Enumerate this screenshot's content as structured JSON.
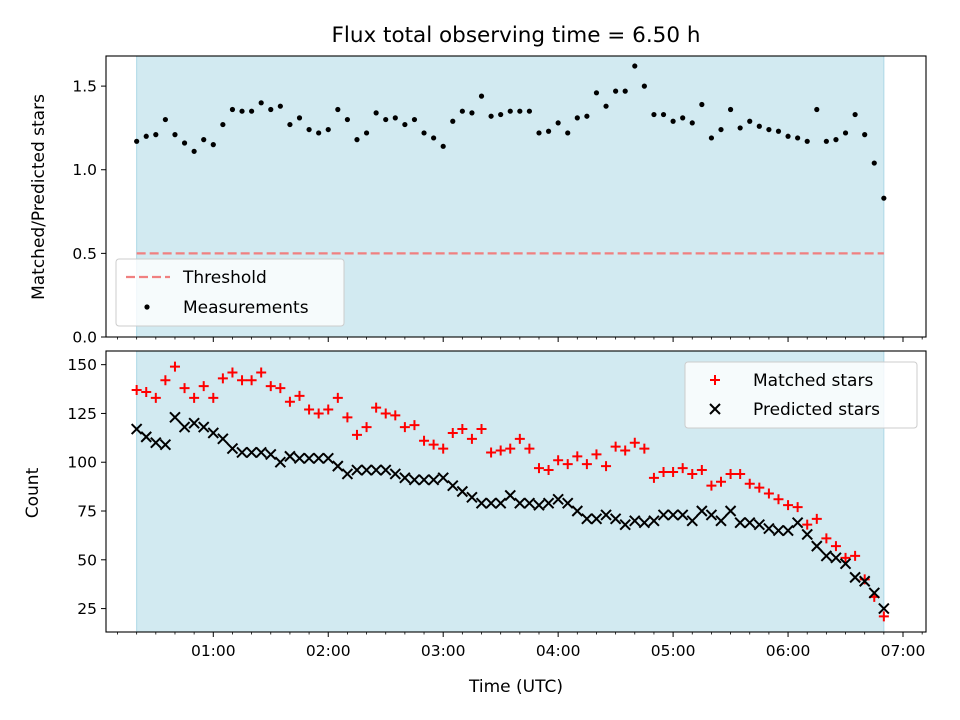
{
  "chart_data": [
    {
      "type": "scatter",
      "title": "Flux total observing time = 6.50 h",
      "ylabel": "Matched/Predicted stars",
      "xlabel": "",
      "xlim": [
        "00:04",
        "07:12"
      ],
      "ylim": [
        0,
        1.68
      ],
      "yticks": [
        {
          "v": 0.0,
          "label": "0.0"
        },
        {
          "v": 0.5,
          "label": "0.5"
        },
        {
          "v": 1.0,
          "label": "1.0"
        },
        {
          "v": 1.5,
          "label": "1.5"
        }
      ],
      "shaded_span": {
        "start": "00:20",
        "end": "06:50",
        "color": "#add8e6"
      },
      "threshold": {
        "name": "Threshold",
        "value": 0.5,
        "color": "#f08080"
      },
      "legend": {
        "position": "lower-left",
        "entries": [
          "Threshold",
          "Measurements"
        ]
      },
      "series": [
        {
          "name": "Measurements",
          "color": "#000000",
          "x": [
            "00:20",
            "00:25",
            "00:30",
            "00:35",
            "00:40",
            "00:45",
            "00:50",
            "00:55",
            "01:00",
            "01:05",
            "01:10",
            "01:15",
            "01:20",
            "01:25",
            "01:30",
            "01:35",
            "01:40",
            "01:45",
            "01:50",
            "01:55",
            "02:00",
            "02:05",
            "02:10",
            "02:15",
            "02:20",
            "02:25",
            "02:30",
            "02:35",
            "02:40",
            "02:45",
            "02:50",
            "02:55",
            "03:00",
            "03:05",
            "03:10",
            "03:15",
            "03:20",
            "03:25",
            "03:30",
            "03:35",
            "03:40",
            "03:45",
            "03:50",
            "03:55",
            "04:00",
            "04:05",
            "04:10",
            "04:15",
            "04:20",
            "04:25",
            "04:30",
            "04:35",
            "04:40",
            "04:45",
            "04:50",
            "04:55",
            "05:00",
            "05:05",
            "05:10",
            "05:15",
            "05:20",
            "05:25",
            "05:30",
            "05:35",
            "05:40",
            "05:45",
            "05:50",
            "05:55",
            "06:00",
            "06:05",
            "06:10",
            "06:15",
            "06:20",
            "06:25",
            "06:30",
            "06:35",
            "06:40",
            "06:45",
            "06:50"
          ],
          "y": [
            1.17,
            1.2,
            1.21,
            1.3,
            1.21,
            1.16,
            1.11,
            1.18,
            1.15,
            1.27,
            1.36,
            1.35,
            1.35,
            1.4,
            1.36,
            1.38,
            1.27,
            1.31,
            1.24,
            1.22,
            1.24,
            1.36,
            1.3,
            1.18,
            1.22,
            1.34,
            1.3,
            1.31,
            1.27,
            1.3,
            1.22,
            1.19,
            1.14,
            1.29,
            1.35,
            1.34,
            1.44,
            1.32,
            1.33,
            1.35,
            1.35,
            1.35,
            1.22,
            1.23,
            1.28,
            1.22,
            1.31,
            1.32,
            1.46,
            1.38,
            1.47,
            1.47,
            1.62,
            1.5,
            1.33,
            1.33,
            1.29,
            1.31,
            1.28,
            1.39,
            1.19,
            1.24,
            1.36,
            1.25,
            1.29,
            1.26,
            1.24,
            1.23,
            1.2,
            1.19,
            1.17,
            1.36,
            1.17,
            1.18,
            1.22,
            1.33,
            1.21,
            1.04,
            0.83
          ]
        }
      ]
    },
    {
      "type": "scatter",
      "title": "",
      "xlabel": "Time (UTC)",
      "ylabel": "Count",
      "xlim": [
        "00:04",
        "07:12"
      ],
      "ylim": [
        13,
        157
      ],
      "xticks": [
        "01:00",
        "02:00",
        "03:00",
        "04:00",
        "05:00",
        "06:00",
        "07:00"
      ],
      "yticks": [
        {
          "v": 25,
          "label": "25"
        },
        {
          "v": 50,
          "label": "50"
        },
        {
          "v": 75,
          "label": "75"
        },
        {
          "v": 100,
          "label": "100"
        },
        {
          "v": 125,
          "label": "125"
        },
        {
          "v": 150,
          "label": "150"
        }
      ],
      "shaded_span": {
        "start": "00:20",
        "end": "06:50",
        "color": "#add8e6"
      },
      "legend": {
        "position": "top-right",
        "entries": [
          "Matched stars",
          "Predicted stars"
        ]
      },
      "series": [
        {
          "name": "Matched stars",
          "marker": "plus",
          "color": "#ff0000",
          "x": [
            "00:20",
            "00:25",
            "00:30",
            "00:35",
            "00:40",
            "00:45",
            "00:50",
            "00:55",
            "01:00",
            "01:05",
            "01:10",
            "01:15",
            "01:20",
            "01:25",
            "01:30",
            "01:35",
            "01:40",
            "01:45",
            "01:50",
            "01:55",
            "02:00",
            "02:05",
            "02:10",
            "02:15",
            "02:20",
            "02:25",
            "02:30",
            "02:35",
            "02:40",
            "02:45",
            "02:50",
            "02:55",
            "03:00",
            "03:05",
            "03:10",
            "03:15",
            "03:20",
            "03:25",
            "03:30",
            "03:35",
            "03:40",
            "03:45",
            "03:50",
            "03:55",
            "04:00",
            "04:05",
            "04:10",
            "04:15",
            "04:20",
            "04:25",
            "04:30",
            "04:35",
            "04:40",
            "04:45",
            "04:50",
            "04:55",
            "05:00",
            "05:05",
            "05:10",
            "05:15",
            "05:20",
            "05:25",
            "05:30",
            "05:35",
            "05:40",
            "05:45",
            "05:50",
            "05:55",
            "06:00",
            "06:05",
            "06:10",
            "06:15",
            "06:20",
            "06:25",
            "06:30",
            "06:35",
            "06:40",
            "06:45",
            "06:50"
          ],
          "y": [
            137,
            136,
            133,
            142,
            149,
            138,
            133,
            139,
            133,
            143,
            146,
            142,
            142,
            146,
            139,
            138,
            131,
            134,
            127,
            125,
            127,
            133,
            123,
            114,
            118,
            128,
            125,
            124,
            118,
            119,
            111,
            109,
            107,
            115,
            117,
            112,
            117,
            105,
            106,
            107,
            112,
            107,
            97,
            96,
            101,
            99,
            103,
            99,
            104,
            98,
            108,
            106,
            110,
            107,
            92,
            95,
            95,
            97,
            94,
            96,
            88,
            90,
            94,
            94,
            89,
            87,
            84,
            81,
            78,
            77,
            68,
            71,
            61,
            57,
            51,
            52,
            40,
            31,
            21
          ]
        },
        {
          "name": "Predicted stars",
          "marker": "x",
          "color": "#000000",
          "x": [
            "00:20",
            "00:25",
            "00:30",
            "00:35",
            "00:40",
            "00:45",
            "00:50",
            "00:55",
            "01:00",
            "01:05",
            "01:10",
            "01:15",
            "01:20",
            "01:25",
            "01:30",
            "01:35",
            "01:40",
            "01:45",
            "01:50",
            "01:55",
            "02:00",
            "02:05",
            "02:10",
            "02:15",
            "02:20",
            "02:25",
            "02:30",
            "02:35",
            "02:40",
            "02:45",
            "02:50",
            "02:55",
            "03:00",
            "03:05",
            "03:10",
            "03:15",
            "03:20",
            "03:25",
            "03:30",
            "03:35",
            "03:40",
            "03:45",
            "03:50",
            "03:55",
            "04:00",
            "04:05",
            "04:10",
            "04:15",
            "04:20",
            "04:25",
            "04:30",
            "04:35",
            "04:40",
            "04:45",
            "04:50",
            "04:55",
            "05:00",
            "05:05",
            "05:10",
            "05:15",
            "05:20",
            "05:25",
            "05:30",
            "05:35",
            "05:40",
            "05:45",
            "05:50",
            "05:55",
            "06:00",
            "06:05",
            "06:10",
            "06:15",
            "06:20",
            "06:25",
            "06:30",
            "06:35",
            "06:40",
            "06:45",
            "06:50"
          ],
          "y": [
            117,
            113,
            110,
            109,
            123,
            118,
            120,
            118,
            115,
            112,
            107,
            105,
            105,
            105,
            104,
            100,
            103,
            102,
            102,
            102,
            102,
            98,
            94,
            96,
            96,
            96,
            96,
            94,
            92,
            91,
            91,
            91,
            92,
            88,
            85,
            82,
            79,
            79,
            79,
            83,
            79,
            79,
            78,
            79,
            81,
            79,
            75,
            71,
            71,
            73,
            71,
            68,
            70,
            69,
            70,
            73,
            73,
            73,
            70,
            75,
            73,
            70,
            75,
            69,
            69,
            68,
            66,
            65,
            65,
            69,
            63,
            57,
            52,
            51,
            48,
            41,
            39,
            33,
            25
          ]
        }
      ]
    }
  ]
}
